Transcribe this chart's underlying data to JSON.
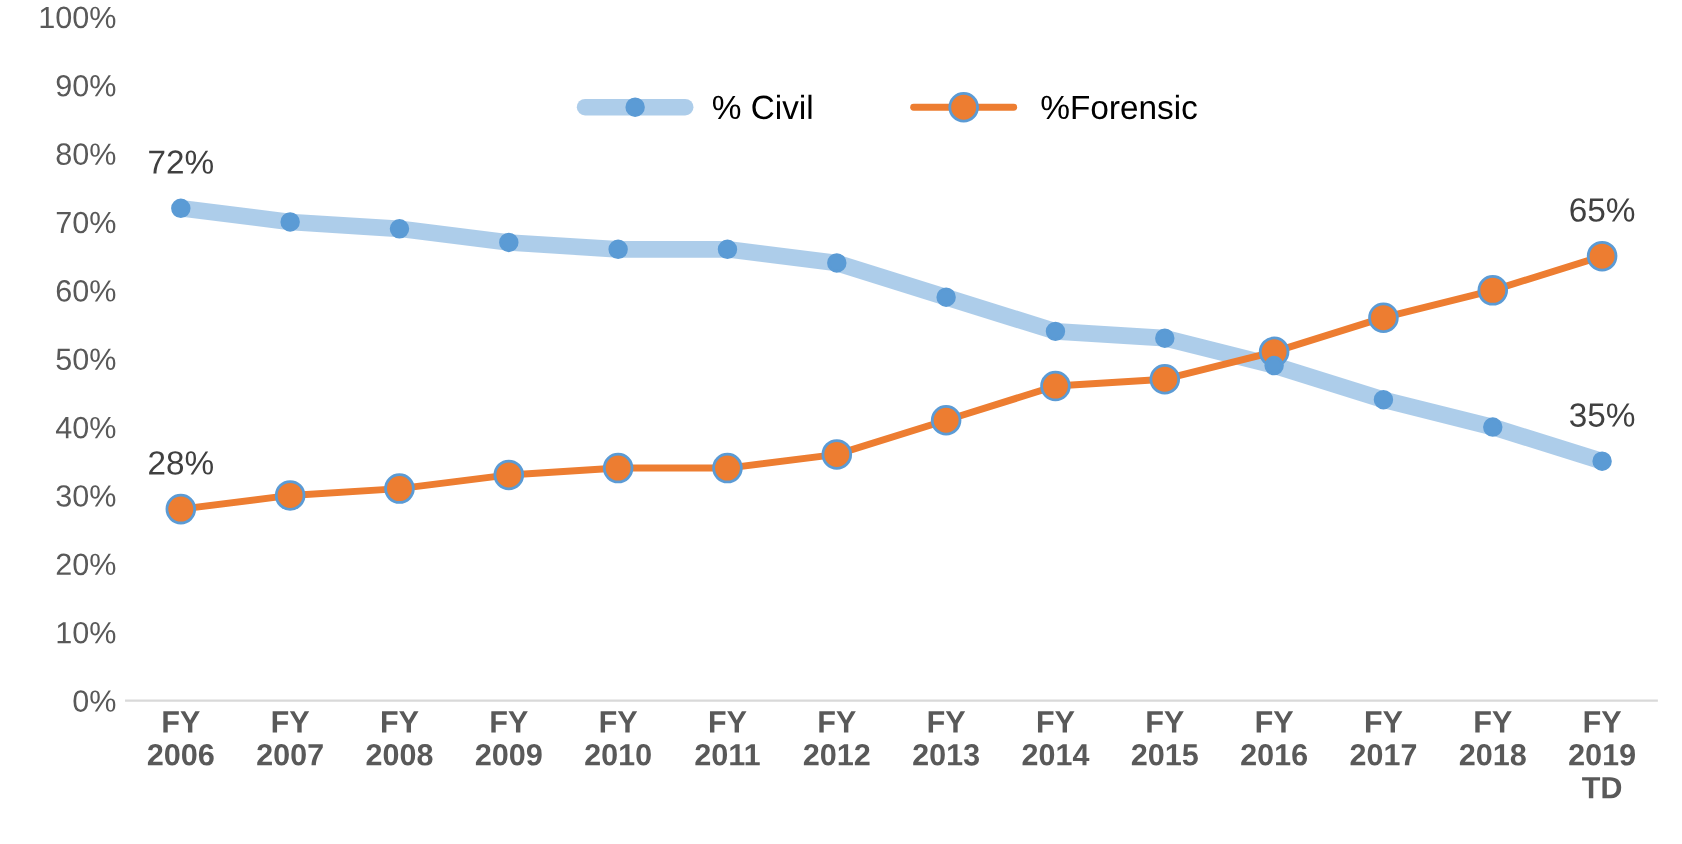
{
  "chart_data": {
    "type": "line",
    "categories": [
      "FY\n2006",
      "FY\n2007",
      "FY\n2008",
      "FY\n2009",
      "FY\n2010",
      "FY\n2011",
      "FY\n2012",
      "FY\n2013",
      "FY\n2014",
      "FY\n2015",
      "FY\n2016",
      "FY\n2017",
      "FY\n2018",
      "FY\n2019\nTD"
    ],
    "series": [
      {
        "name": "% Civil",
        "color": "#5b9bd5",
        "values": [
          72,
          70,
          69,
          67,
          66,
          66,
          64,
          59,
          54,
          53,
          49,
          44,
          40,
          35
        ],
        "value_labels": [
          "72%",
          null,
          null,
          null,
          null,
          null,
          null,
          null,
          null,
          null,
          null,
          null,
          null,
          "35%"
        ]
      },
      {
        "name": "%Forensic",
        "color": "#ed7d31",
        "values": [
          28,
          30,
          31,
          33,
          34,
          34,
          36,
          41,
          46,
          47,
          51,
          56,
          60,
          65
        ],
        "value_labels": [
          "28%",
          null,
          null,
          null,
          null,
          null,
          null,
          null,
          null,
          null,
          null,
          null,
          null,
          "65%"
        ]
      }
    ],
    "ylim": [
      0,
      100
    ],
    "yticks": [
      {
        "value": 0,
        "label": "0%"
      },
      {
        "value": 10,
        "label": "10%"
      },
      {
        "value": 20,
        "label": "20%"
      },
      {
        "value": 30,
        "label": "30%"
      },
      {
        "value": 40,
        "label": "40%"
      },
      {
        "value": 50,
        "label": "50%"
      },
      {
        "value": 60,
        "label": "60%"
      },
      {
        "value": 70,
        "label": "70%"
      },
      {
        "value": 80,
        "label": "80%"
      },
      {
        "value": 90,
        "label": "90%"
      },
      {
        "value": 100,
        "label": "100%"
      }
    ],
    "marker": "circle",
    "legend": "top",
    "grid": false
  }
}
